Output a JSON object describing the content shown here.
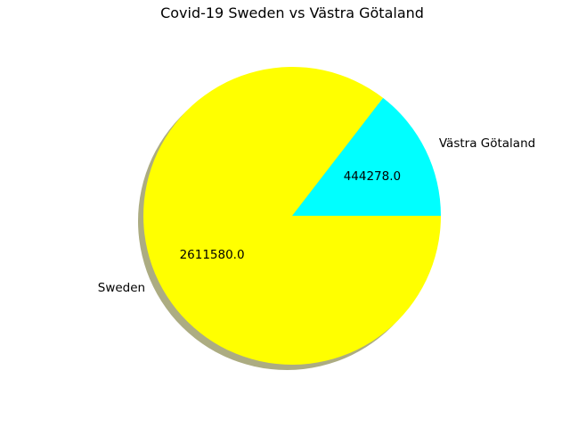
{
  "chart_data": {
    "type": "pie",
    "title": "Covid-19 Sweden vs Västra Götaland",
    "labels": [
      "Västra Götaland",
      "Sweden"
    ],
    "values": [
      444278.0,
      2611580.0
    ],
    "value_labels": [
      "444278.0",
      "2611580.0"
    ],
    "colors": [
      "#00ffff",
      "#ffff00"
    ],
    "shadow": true,
    "start_angle": 0,
    "direction": "counterclockwise"
  }
}
